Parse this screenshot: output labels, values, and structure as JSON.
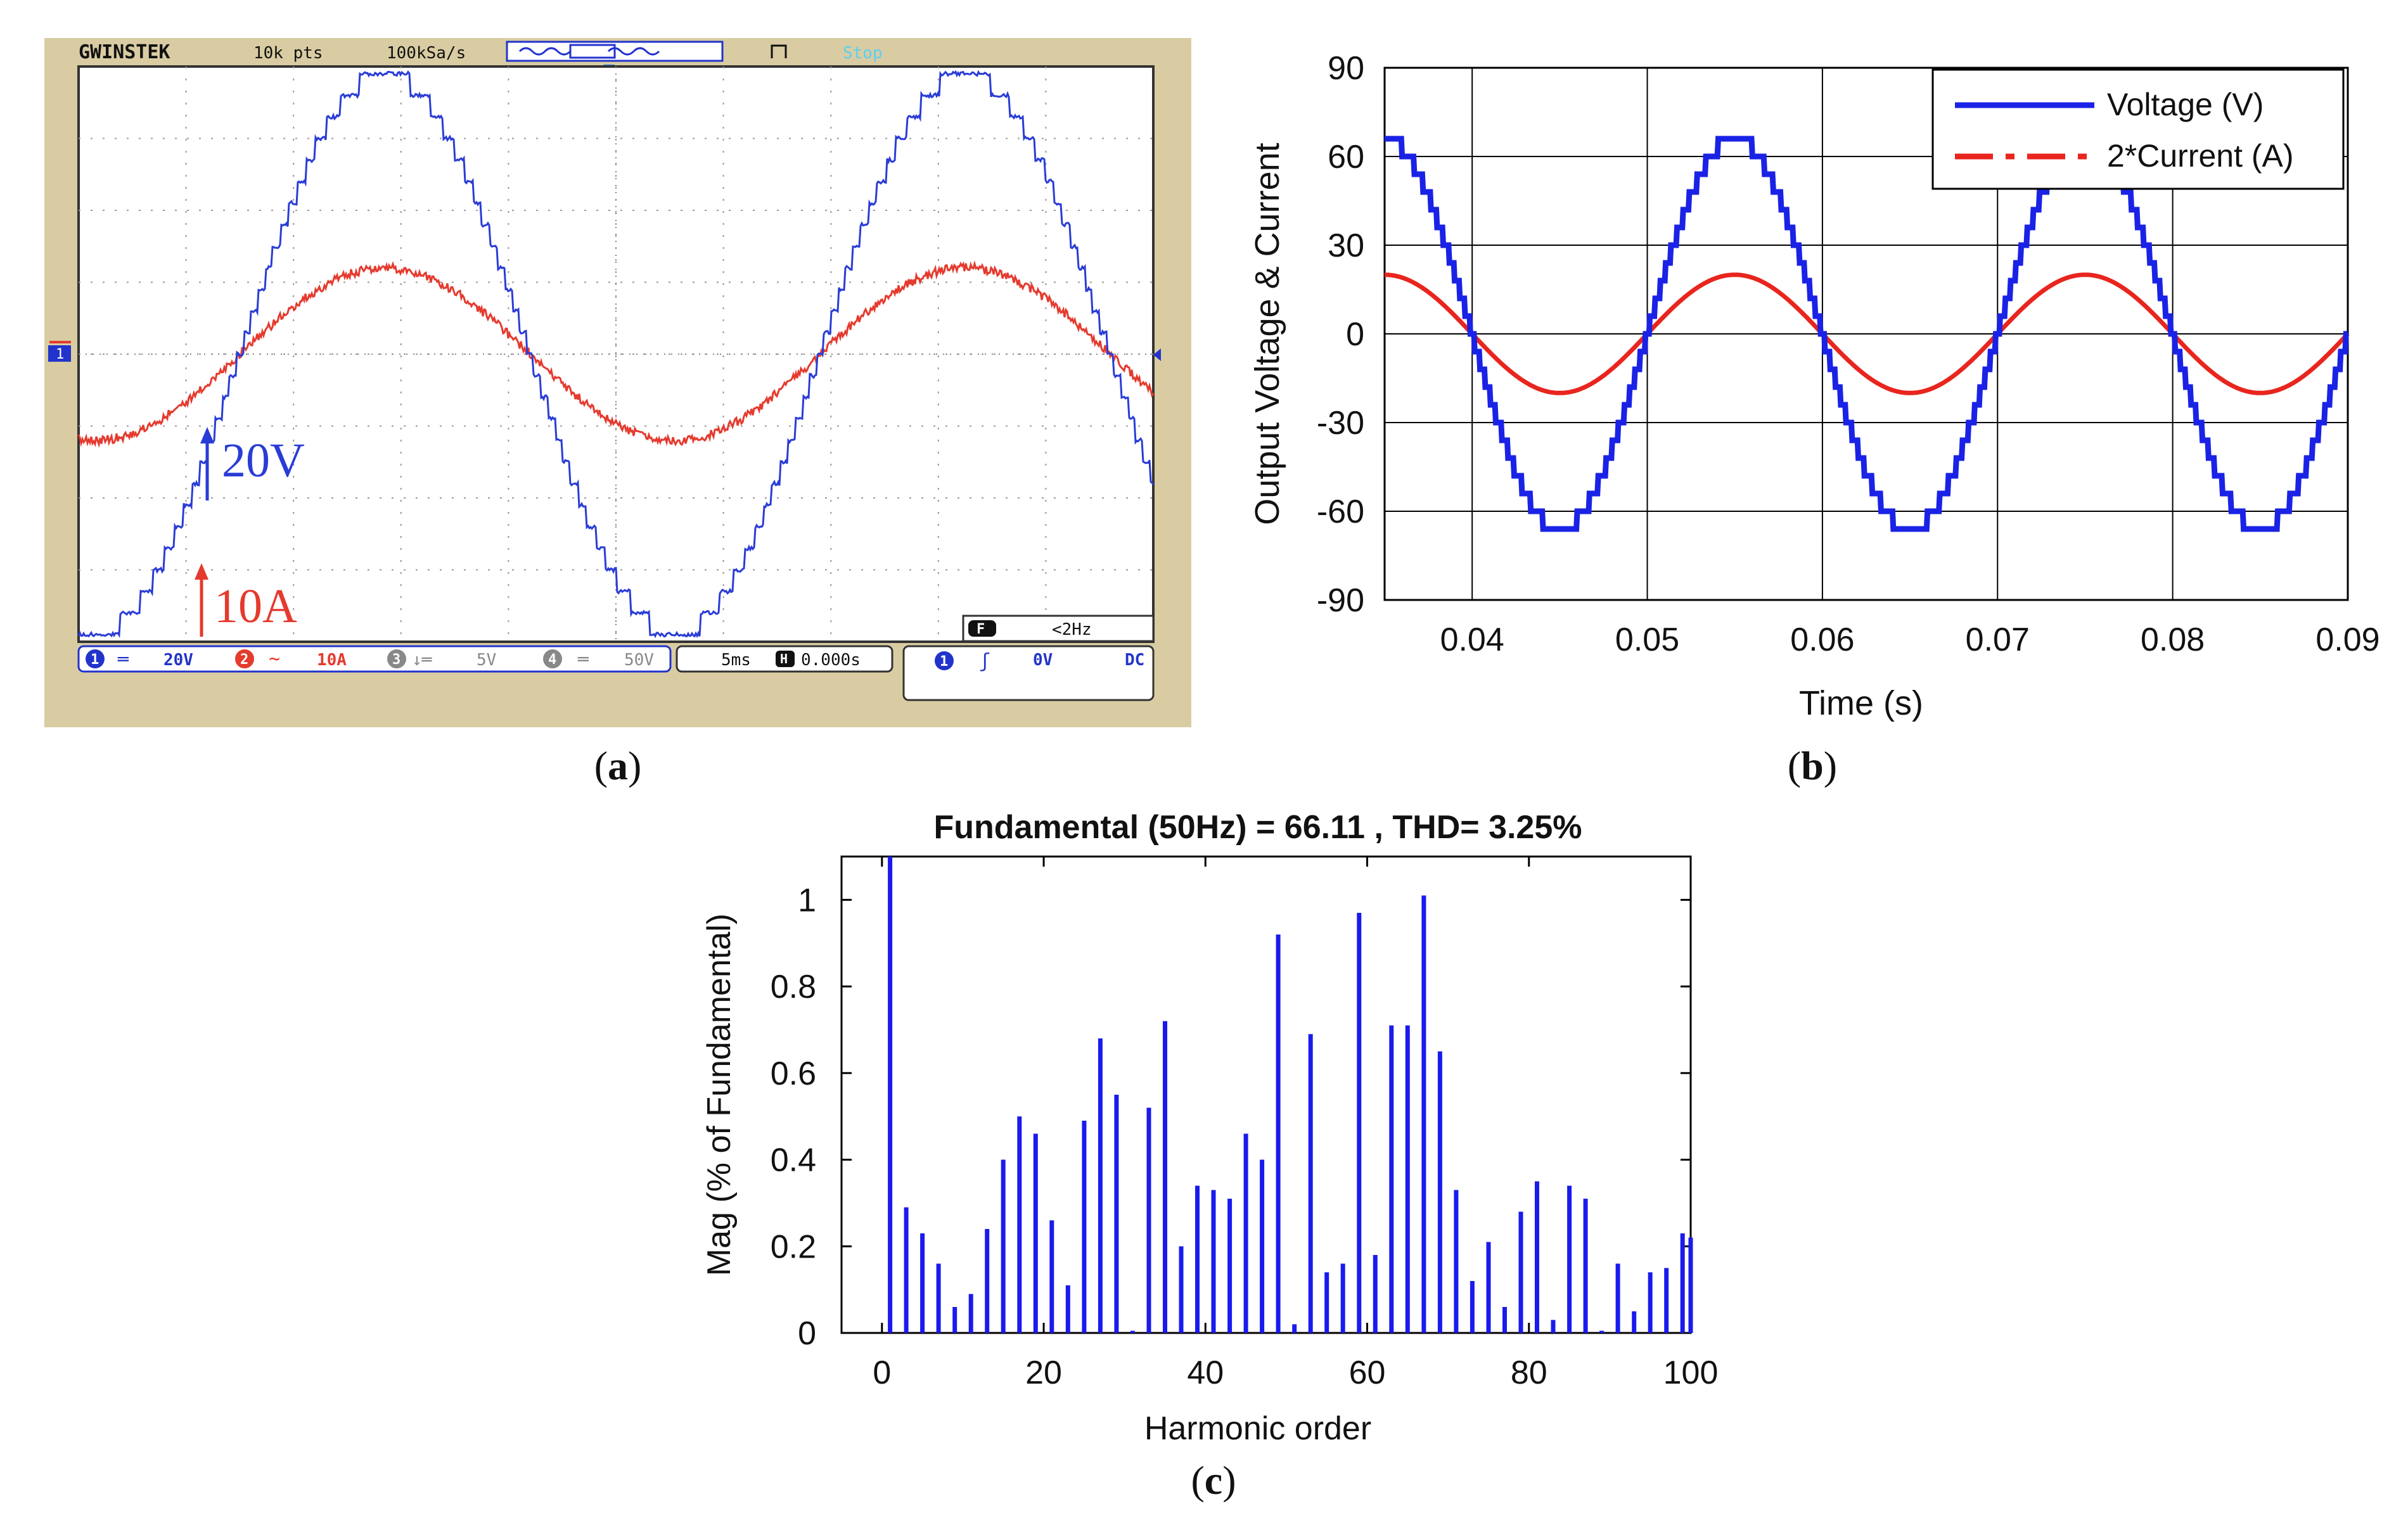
{
  "chart_data": [
    {
      "id": "a",
      "type": "line",
      "panel_label": "a",
      "title": "",
      "device": {
        "brand": "GWINSTEK",
        "points": "10k pts",
        "sample_rate": "100kSa/s",
        "status": "Stop",
        "freq": "<2Hz",
        "ch1_scale": "20V",
        "ch2_scale": "10A",
        "ch3_scale": "5V",
        "ch4_scale": "50V",
        "timebase": "5ms",
        "h_pos": "0.000s",
        "trig_level": "0V",
        "trig_coupling": "DC",
        "ch_numbers": [
          "1",
          "2",
          "3",
          "4"
        ],
        "ch1_marker": "1",
        "h_key": "H",
        "f_key": "F"
      },
      "annotations": {
        "voltage_scale": "20V",
        "current_scale": "10A"
      },
      "series": [
        {
          "name": "Voltage",
          "color": "#2a3cd6",
          "amplitude_div": 3.9,
          "steps": 13,
          "period_div": 5.4,
          "phase_div": 0.15
        },
        {
          "name": "Current",
          "color": "#e53a2e",
          "amplitude_div": 1.2,
          "period_div": 5.4,
          "phase_div": 0.15
        }
      ],
      "grid": true
    },
    {
      "id": "b",
      "type": "line",
      "panel_label": "b",
      "title": "",
      "xlabel": "Time (s)",
      "ylabel": "Output Voltage & Current",
      "xlim": [
        0.035,
        0.09
      ],
      "ylim": [
        -90,
        90
      ],
      "xticks": [
        0.04,
        0.05,
        0.06,
        0.07,
        0.08,
        0.09
      ],
      "xtick_labels": [
        "0.04",
        "0.05",
        "0.06",
        "0.07",
        "0.08",
        "0.09"
      ],
      "yticks": [
        -90,
        -60,
        -30,
        0,
        30,
        60,
        90
      ],
      "ytick_labels": [
        "-90",
        "-60",
        "-30",
        "0",
        "30",
        "60",
        "90"
      ],
      "grid": true,
      "legend_position": "top-right",
      "series": [
        {
          "name": "Voltage (V)",
          "color": "#1a22e6",
          "style": "solid",
          "amplitude": 66,
          "frequency_hz": 50,
          "levels": 11
        },
        {
          "name": "2*Current (A)",
          "color": "#e8251e",
          "style": "dash-dot",
          "amplitude": 20,
          "frequency_hz": 50
        }
      ]
    },
    {
      "id": "c",
      "type": "bar",
      "panel_label": "c",
      "title": "Fundamental (50Hz) = 66.11 , THD= 3.25%",
      "xlabel": "Harmonic order",
      "ylabel": "Mag (% of Fundamental)",
      "xlim": [
        -5,
        100
      ],
      "ylim": [
        0,
        1.1
      ],
      "xticks": [
        0,
        20,
        40,
        60,
        80,
        100
      ],
      "xtick_labels": [
        "0",
        "20",
        "40",
        "60",
        "80",
        "100"
      ],
      "yticks": [
        0,
        0.2,
        0.4,
        0.6,
        0.8,
        1
      ],
      "ytick_labels": [
        "0",
        "0.2",
        "0.4",
        "0.6",
        "0.8",
        "1"
      ],
      "color": "#1a1aee",
      "x": [
        1,
        3,
        5,
        7,
        9,
        11,
        13,
        15,
        17,
        19,
        21,
        23,
        25,
        27,
        29,
        31,
        33,
        35,
        37,
        39,
        41,
        43,
        45,
        47,
        49,
        51,
        53,
        55,
        57,
        59,
        61,
        63,
        65,
        67,
        69,
        71,
        73,
        75,
        77,
        79,
        81,
        83,
        85,
        87,
        89,
        91,
        93,
        95,
        97,
        99,
        100
      ],
      "values": [
        1.1,
        0.29,
        0.23,
        0.16,
        0.06,
        0.09,
        0.24,
        0.4,
        0.5,
        0.46,
        0.26,
        0.11,
        0.49,
        0.68,
        0.55,
        0.005,
        0.52,
        0.72,
        0.2,
        0.34,
        0.33,
        0.31,
        0.46,
        0.4,
        0.92,
        0.02,
        0.69,
        0.14,
        0.16,
        0.97,
        0.18,
        0.71,
        0.71,
        1.01,
        0.65,
        0.33,
        0.12,
        0.21,
        0.06,
        0.28,
        0.35,
        0.03,
        0.34,
        0.31,
        0.005,
        0.16,
        0.05,
        0.14,
        0.15,
        0.23,
        0.22
      ]
    }
  ]
}
